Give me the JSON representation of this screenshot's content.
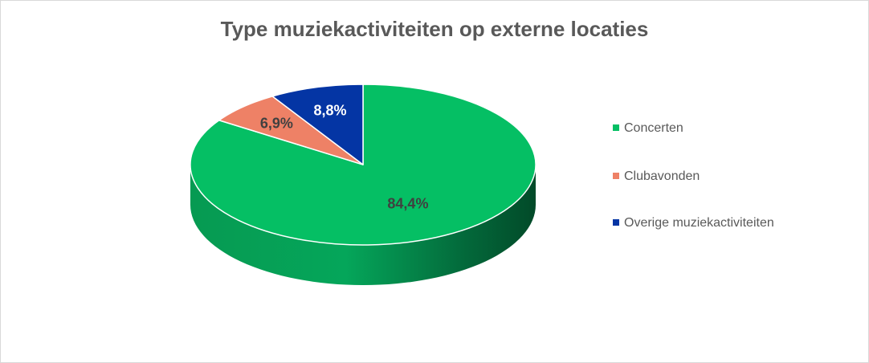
{
  "chart_data": {
    "type": "pie",
    "title": "Type muziekactiviteiten op externe locaties",
    "categories": [
      "Concerten",
      "Clubavonden",
      "Overige muziekactiviteiten"
    ],
    "values": [
      84.4,
      6.9,
      8.8
    ],
    "data_labels": [
      "84,4%",
      "6,9%",
      "8,8%"
    ],
    "colors": [
      "#05bf64",
      "#ee8166",
      "#0435a4"
    ],
    "label_colors": [
      "#404040",
      "#404040",
      "#ffffff"
    ],
    "legend_position": "right",
    "style": "3d"
  }
}
